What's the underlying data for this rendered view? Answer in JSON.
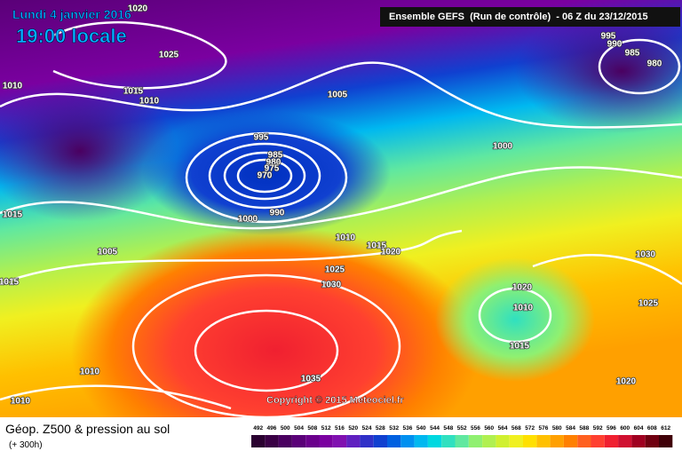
{
  "header": {
    "date": "Lundi 4 janvier 2016",
    "time": "19:00 locale",
    "run": "Ensemble GEFS  (Run de contrôle)  - 06 Z du 23/12/2015"
  },
  "copyright": "Copyright © 2015 Meteociel.fr",
  "footer": {
    "title": "Géop. Z500 & pression au sol",
    "lead": "(+ 300h)"
  },
  "isobars": [
    "1020",
    "1025",
    "1015",
    "1010",
    "1010",
    "1005",
    "995",
    "985",
    "980",
    "975",
    "970",
    "990",
    "1000",
    "995",
    "990",
    "985",
    "980",
    "1000",
    "1015",
    "1005",
    "1010",
    "1015",
    "1020",
    "1025",
    "1030",
    "1015",
    "1010",
    "1035",
    "1010",
    "1020",
    "1010",
    "1015",
    "1030",
    "1025",
    "1020"
  ],
  "legend": {
    "values": [
      492,
      496,
      500,
      504,
      508,
      512,
      516,
      520,
      524,
      528,
      532,
      536,
      540,
      544,
      548,
      552,
      556,
      560,
      564,
      568,
      572,
      576,
      580,
      584,
      588,
      592,
      596,
      600,
      604,
      608,
      612
    ],
    "colors": [
      "#2a0030",
      "#3a0045",
      "#4a0060",
      "#5a0078",
      "#6a008c",
      "#7a00a0",
      "#8010b0",
      "#6020c0",
      "#3030c8",
      "#1040d0",
      "#0060e0",
      "#0090f0",
      "#00b8f0",
      "#00d8e0",
      "#30e0c0",
      "#60e8a0",
      "#90f070",
      "#b0f050",
      "#d0f030",
      "#f0f020",
      "#ffe000",
      "#ffc000",
      "#ffa000",
      "#ff8000",
      "#ff6020",
      "#ff4030",
      "#f02030",
      "#d01030",
      "#a00020",
      "#700010",
      "#400008"
    ]
  }
}
